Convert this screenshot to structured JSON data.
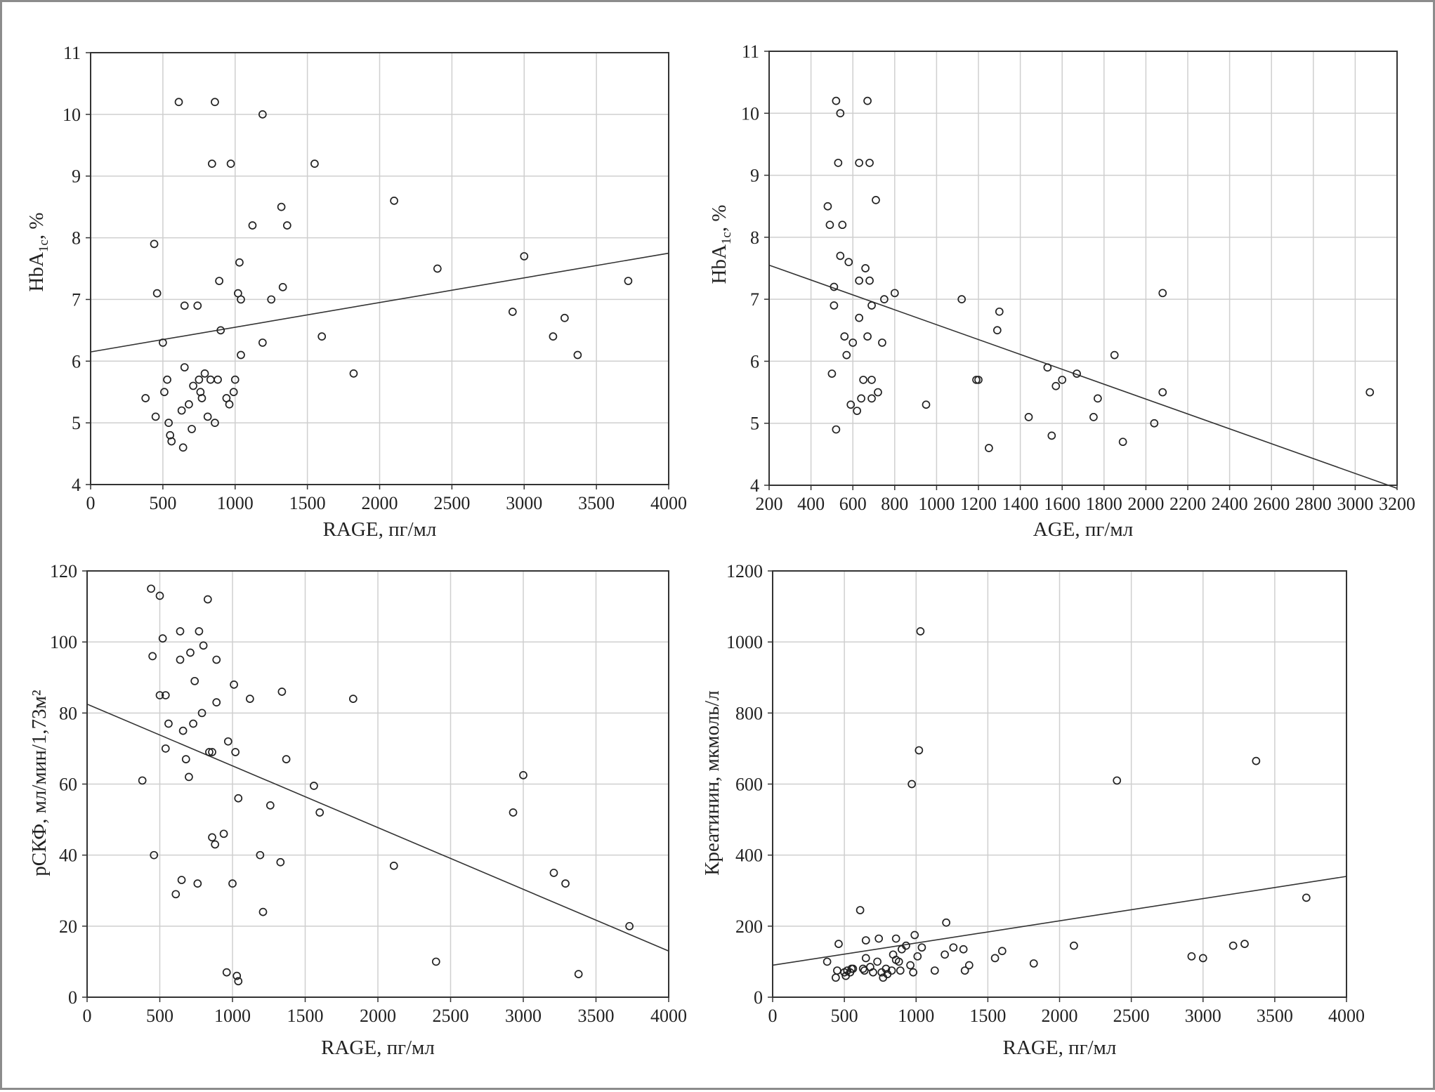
{
  "chart_data": [
    {
      "type": "scatter",
      "xlabel": "RAGE, пг/мл",
      "ylabel": "HbA1c, %",
      "ylabel_main": "HbA",
      "ylabel_sub": "1c",
      "ylabel_rest": ", %",
      "xlim": [
        0,
        4000
      ],
      "ylim": [
        4,
        11
      ],
      "xticks": [
        0,
        500,
        1000,
        1500,
        2000,
        2500,
        3000,
        3500,
        4000
      ],
      "yticks": [
        4,
        5,
        6,
        7,
        8,
        9,
        10,
        11
      ],
      "fit_line": [
        [
          0,
          6.15
        ],
        [
          4000,
          7.75
        ]
      ],
      "points": [
        [
          380,
          5.4
        ],
        [
          440,
          7.9
        ],
        [
          450,
          5.1
        ],
        [
          460,
          7.1
        ],
        [
          500,
          6.3
        ],
        [
          510,
          5.5
        ],
        [
          530,
          5.7
        ],
        [
          540,
          5.0
        ],
        [
          550,
          4.8
        ],
        [
          560,
          4.7
        ],
        [
          610,
          10.2
        ],
        [
          630,
          5.2
        ],
        [
          640,
          4.6
        ],
        [
          650,
          6.9
        ],
        [
          650,
          5.9
        ],
        [
          680,
          5.3
        ],
        [
          700,
          4.9
        ],
        [
          710,
          5.6
        ],
        [
          740,
          6.9
        ],
        [
          750,
          5.7
        ],
        [
          760,
          5.5
        ],
        [
          770,
          5.4
        ],
        [
          790,
          5.8
        ],
        [
          810,
          5.1
        ],
        [
          830,
          5.7
        ],
        [
          840,
          9.2
        ],
        [
          860,
          10.2
        ],
        [
          860,
          5.0
        ],
        [
          880,
          5.7
        ],
        [
          890,
          7.3
        ],
        [
          900,
          6.5
        ],
        [
          940,
          5.4
        ],
        [
          960,
          5.3
        ],
        [
          970,
          9.2
        ],
        [
          990,
          5.5
        ],
        [
          1000,
          5.7
        ],
        [
          1020,
          7.1
        ],
        [
          1030,
          7.6
        ],
        [
          1040,
          6.1
        ],
        [
          1040,
          7.0
        ],
        [
          1120,
          8.2
        ],
        [
          1190,
          6.3
        ],
        [
          1190,
          10.0
        ],
        [
          1250,
          7.0
        ],
        [
          1320,
          8.5
        ],
        [
          1330,
          7.2
        ],
        [
          1360,
          8.2
        ],
        [
          1550,
          9.2
        ],
        [
          1600,
          6.4
        ],
        [
          1820,
          5.8
        ],
        [
          2100,
          8.6
        ],
        [
          2400,
          7.5
        ],
        [
          2920,
          6.8
        ],
        [
          3000,
          7.7
        ],
        [
          3200,
          6.4
        ],
        [
          3280,
          6.7
        ],
        [
          3370,
          6.1
        ],
        [
          3720,
          7.3
        ]
      ]
    },
    {
      "type": "scatter",
      "xlabel": "AGE, пг/мл",
      "ylabel": "HbA1c, %",
      "ylabel_main": "HbA",
      "ylabel_sub": "1c",
      "ylabel_rest": ", %",
      "xlim": [
        200,
        3200
      ],
      "ylim": [
        4,
        11
      ],
      "xticks": [
        200,
        400,
        600,
        800,
        1000,
        1200,
        1400,
        1600,
        1800,
        2000,
        2200,
        2400,
        2600,
        2800,
        3000,
        3200
      ],
      "yticks": [
        4,
        5,
        6,
        7,
        8,
        9,
        10,
        11
      ],
      "fit_line": [
        [
          200,
          7.55
        ],
        [
          3200,
          3.95
        ]
      ],
      "points": [
        [
          480,
          8.5
        ],
        [
          490,
          8.2
        ],
        [
          500,
          5.8
        ],
        [
          510,
          7.2
        ],
        [
          510,
          6.9
        ],
        [
          520,
          10.2
        ],
        [
          520,
          4.9
        ],
        [
          530,
          9.2
        ],
        [
          540,
          7.7
        ],
        [
          540,
          10.0
        ],
        [
          550,
          8.2
        ],
        [
          560,
          6.4
        ],
        [
          570,
          6.1
        ],
        [
          580,
          7.6
        ],
        [
          590,
          5.3
        ],
        [
          600,
          6.3
        ],
        [
          620,
          5.2
        ],
        [
          630,
          9.2
        ],
        [
          630,
          7.3
        ],
        [
          630,
          6.7
        ],
        [
          640,
          5.4
        ],
        [
          650,
          5.7
        ],
        [
          660,
          7.5
        ],
        [
          670,
          10.2
        ],
        [
          670,
          6.4
        ],
        [
          680,
          9.2
        ],
        [
          680,
          7.3
        ],
        [
          690,
          6.9
        ],
        [
          690,
          5.7
        ],
        [
          690,
          5.4
        ],
        [
          710,
          8.6
        ],
        [
          720,
          5.5
        ],
        [
          740,
          6.3
        ],
        [
          750,
          7.0
        ],
        [
          800,
          7.1
        ],
        [
          950,
          5.3
        ],
        [
          1120,
          7.0
        ],
        [
          1190,
          5.7
        ],
        [
          1200,
          5.7
        ],
        [
          1250,
          4.6
        ],
        [
          1290,
          6.5
        ],
        [
          1300,
          6.8
        ],
        [
          1440,
          5.1
        ],
        [
          1530,
          5.9
        ],
        [
          1550,
          4.8
        ],
        [
          1570,
          5.6
        ],
        [
          1600,
          5.7
        ],
        [
          1670,
          5.8
        ],
        [
          1750,
          5.1
        ],
        [
          1770,
          5.4
        ],
        [
          1850,
          6.1
        ],
        [
          1890,
          4.7
        ],
        [
          2040,
          5.0
        ],
        [
          2080,
          7.1
        ],
        [
          2080,
          5.5
        ],
        [
          3070,
          5.5
        ]
      ]
    },
    {
      "type": "scatter",
      "xlabel": "RAGE, пг/мл",
      "ylabel": "рСКФ, мл/мин/1,73м²",
      "xlim": [
        0,
        4000
      ],
      "ylim": [
        0,
        120
      ],
      "xticks": [
        0,
        500,
        1000,
        1500,
        2000,
        2500,
        3000,
        3500,
        4000
      ],
      "yticks": [
        0,
        20,
        40,
        60,
        80,
        100,
        120
      ],
      "fit_line": [
        [
          0,
          82.5
        ],
        [
          4000,
          13.0
        ]
      ],
      "points": [
        [
          380,
          61
        ],
        [
          440,
          115
        ],
        [
          450,
          96
        ],
        [
          460,
          40
        ],
        [
          500,
          113
        ],
        [
          500,
          85
        ],
        [
          520,
          101
        ],
        [
          540,
          70
        ],
        [
          540,
          85
        ],
        [
          560,
          77
        ],
        [
          610,
          29
        ],
        [
          640,
          95
        ],
        [
          640,
          103
        ],
        [
          650,
          33
        ],
        [
          660,
          75
        ],
        [
          680,
          67
        ],
        [
          700,
          62
        ],
        [
          710,
          97
        ],
        [
          730,
          77
        ],
        [
          740,
          89
        ],
        [
          760,
          32
        ],
        [
          770,
          103
        ],
        [
          790,
          80
        ],
        [
          800,
          99
        ],
        [
          830,
          112
        ],
        [
          840,
          69
        ],
        [
          860,
          45
        ],
        [
          860,
          69
        ],
        [
          880,
          43
        ],
        [
          890,
          95
        ],
        [
          890,
          83
        ],
        [
          940,
          46
        ],
        [
          960,
          7
        ],
        [
          970,
          72
        ],
        [
          1000,
          32
        ],
        [
          1010,
          88
        ],
        [
          1020,
          69
        ],
        [
          1030,
          6
        ],
        [
          1040,
          4.5
        ],
        [
          1040,
          56
        ],
        [
          1120,
          84
        ],
        [
          1190,
          40
        ],
        [
          1210,
          24
        ],
        [
          1260,
          54
        ],
        [
          1330,
          38
        ],
        [
          1340,
          86
        ],
        [
          1370,
          67
        ],
        [
          1560,
          59.5
        ],
        [
          1600,
          52
        ],
        [
          1830,
          84
        ],
        [
          2110,
          37
        ],
        [
          2400,
          10
        ],
        [
          2930,
          52
        ],
        [
          3000,
          62.5
        ],
        [
          3210,
          35
        ],
        [
          3290,
          32
        ],
        [
          3380,
          6.5
        ],
        [
          3730,
          20
        ]
      ]
    },
    {
      "type": "scatter",
      "xlabel": "RAGE, пг/мл",
      "ylabel": "Креатинин, мкмоль/л",
      "xlim": [
        0,
        4000
      ],
      "ylim": [
        0,
        1200
      ],
      "xticks": [
        0,
        500,
        1000,
        1500,
        2000,
        2500,
        3000,
        3500,
        4000
      ],
      "yticks": [
        0,
        200,
        400,
        600,
        800,
        1000,
        1200
      ],
      "fit_line": [
        [
          0,
          90
        ],
        [
          4000,
          340
        ]
      ],
      "points": [
        [
          380,
          100
        ],
        [
          440,
          55
        ],
        [
          450,
          75
        ],
        [
          460,
          150
        ],
        [
          500,
          70
        ],
        [
          510,
          60
        ],
        [
          520,
          75
        ],
        [
          540,
          70
        ],
        [
          550,
          80
        ],
        [
          560,
          80
        ],
        [
          610,
          245
        ],
        [
          630,
          80
        ],
        [
          640,
          75
        ],
        [
          650,
          110
        ],
        [
          650,
          160
        ],
        [
          680,
          85
        ],
        [
          700,
          70
        ],
        [
          730,
          100
        ],
        [
          740,
          165
        ],
        [
          760,
          70
        ],
        [
          770,
          55
        ],
        [
          790,
          80
        ],
        [
          800,
          65
        ],
        [
          830,
          75
        ],
        [
          840,
          120
        ],
        [
          860,
          165
        ],
        [
          860,
          105
        ],
        [
          880,
          100
        ],
        [
          890,
          75
        ],
        [
          900,
          135
        ],
        [
          930,
          145
        ],
        [
          960,
          90
        ],
        [
          970,
          600
        ],
        [
          980,
          70
        ],
        [
          990,
          175
        ],
        [
          1010,
          115
        ],
        [
          1020,
          695
        ],
        [
          1030,
          1030
        ],
        [
          1040,
          140
        ],
        [
          1130,
          75
        ],
        [
          1200,
          120
        ],
        [
          1210,
          210
        ],
        [
          1260,
          140
        ],
        [
          1330,
          135
        ],
        [
          1340,
          75
        ],
        [
          1370,
          90
        ],
        [
          1550,
          110
        ],
        [
          1600,
          130
        ],
        [
          1820,
          95
        ],
        [
          2100,
          145
        ],
        [
          2400,
          610
        ],
        [
          2920,
          115
        ],
        [
          3000,
          110
        ],
        [
          3210,
          145
        ],
        [
          3290,
          150
        ],
        [
          3370,
          665
        ],
        [
          3720,
          280
        ]
      ]
    }
  ]
}
